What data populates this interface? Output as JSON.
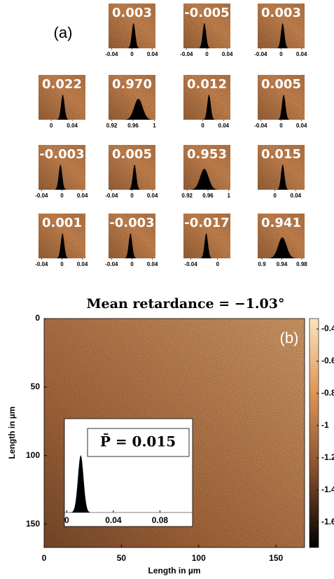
{
  "panel_a": {
    "label": "(a)",
    "cells": [
      {
        "row": 0,
        "col": 1,
        "value": 0.003,
        "xlim": [
          -0.046,
          0.046
        ],
        "xticks": [
          -0.04,
          0,
          0.04
        ]
      },
      {
        "row": 0,
        "col": 2,
        "value": -0.005,
        "xlim": [
          -0.046,
          0.046
        ],
        "xticks": [
          -0.04,
          0,
          0.04
        ]
      },
      {
        "row": 0,
        "col": 3,
        "value": 0.003,
        "xlim": [
          -0.046,
          0.046
        ],
        "xticks": [
          -0.04,
          0,
          0.04
        ]
      },
      {
        "row": 1,
        "col": 0,
        "value": 0.022,
        "xlim": [
          -0.024,
          0.065
        ],
        "xticks": [
          0,
          0.04
        ]
      },
      {
        "row": 1,
        "col": 1,
        "value": {
          "value": 0.97,
          "label": "0.970"
        },
        "xlim": [
          0.914,
          1.002
        ],
        "xticks": [
          0.92,
          0.96,
          1
        ]
      },
      {
        "row": 1,
        "col": 2,
        "value": 0.012,
        "xlim": [
          -0.037,
          0.053
        ],
        "xticks": [
          0,
          0.04
        ]
      },
      {
        "row": 1,
        "col": 3,
        "value": 0.005,
        "xlim": [
          -0.046,
          0.046
        ],
        "xticks": [
          -0.04,
          0,
          0.04
        ]
      },
      {
        "row": 2,
        "col": 0,
        "value": -0.003,
        "xlim": [
          -0.046,
          0.046
        ],
        "xticks": [
          -0.04,
          0,
          0.04
        ]
      },
      {
        "row": 2,
        "col": 1,
        "value": 0.005,
        "xlim": [
          -0.046,
          0.046
        ],
        "xticks": [
          -0.04,
          0,
          0.04
        ]
      },
      {
        "row": 2,
        "col": 2,
        "value": 0.953,
        "xlim": [
          0.913,
          1.003
        ],
        "xticks": [
          0.92,
          0.96,
          1
        ]
      },
      {
        "row": 2,
        "col": 3,
        "value": 0.015,
        "xlim": [
          -0.033,
          0.057
        ],
        "xticks": [
          0,
          0.04
        ]
      },
      {
        "row": 3,
        "col": 0,
        "value": 0.001,
        "xlim": [
          -0.046,
          0.046
        ],
        "xticks": [
          -0.04,
          0,
          0.04
        ]
      },
      {
        "row": 3,
        "col": 1,
        "value": -0.003,
        "xlim": [
          -0.046,
          0.046
        ],
        "xticks": [
          -0.04,
          0,
          0.04
        ]
      },
      {
        "row": 3,
        "col": 2,
        "value": -0.017,
        "xlim": [
          -0.051,
          0.019
        ],
        "xticks": [
          -0.04,
          0
        ]
      },
      {
        "row": 3,
        "col": 3,
        "value": 0.941,
        "xlim": [
          0.8914,
          0.9857
        ],
        "xticks": [
          0.9,
          0.94,
          0.98
        ]
      }
    ]
  },
  "chart_data": {
    "type": "heatmap",
    "title": "Mean retardance = −1.03°",
    "label": "(b)",
    "xlabel": "Length in µm",
    "ylabel": "Length in µm",
    "xlim": [
      0,
      168.5
    ],
    "ylim": [
      0,
      167
    ],
    "xticks": [
      0,
      50,
      100,
      150
    ],
    "yticks": [
      0,
      50,
      100,
      150
    ],
    "colorbar": {
      "lim": [
        -1.757,
        -0.335
      ],
      "ticks": [
        -0.4,
        -0.6,
        -0.8,
        -1,
        -1.2,
        -1.4,
        -1.6
      ]
    },
    "inset": {
      "type": "histogram",
      "text": "P̄ = 0.015",
      "xlim": [
        -0.002,
        0.108
      ],
      "xticks": [
        0,
        0.04,
        0.08
      ],
      "peak": 0.012
    }
  }
}
